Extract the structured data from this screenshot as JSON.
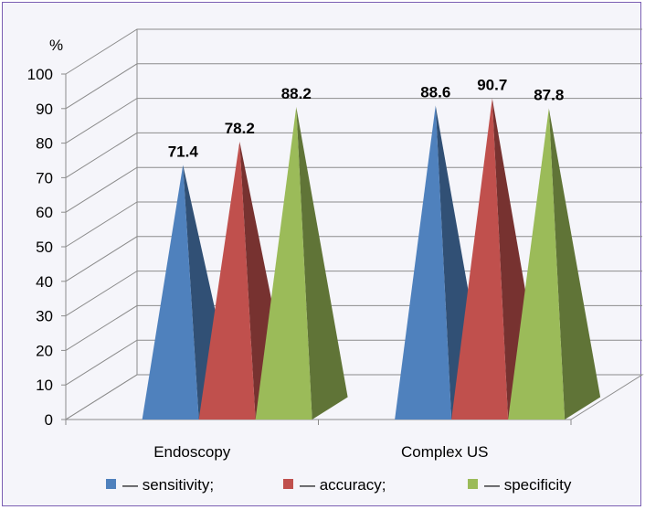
{
  "chart_data": {
    "type": "bar",
    "style": "3d-pyramid",
    "unit_label": "%",
    "categories": [
      "Endoscopy",
      "Complex US"
    ],
    "series": [
      {
        "name": "— sensitivity;",
        "color": "#4f81bd",
        "values": [
          71.4,
          88.6
        ]
      },
      {
        "name": "— accuracy;",
        "color": "#c0504d",
        "values": [
          78.2,
          90.7
        ]
      },
      {
        "name": "— specificity",
        "color": "#9bbb59",
        "values": [
          88.2,
          87.8
        ]
      }
    ],
    "y_ticks": [
      0,
      10,
      20,
      30,
      40,
      50,
      60,
      70,
      80,
      90,
      100
    ],
    "ylim": [
      0,
      100
    ],
    "grid": true,
    "legend_position": "bottom"
  }
}
